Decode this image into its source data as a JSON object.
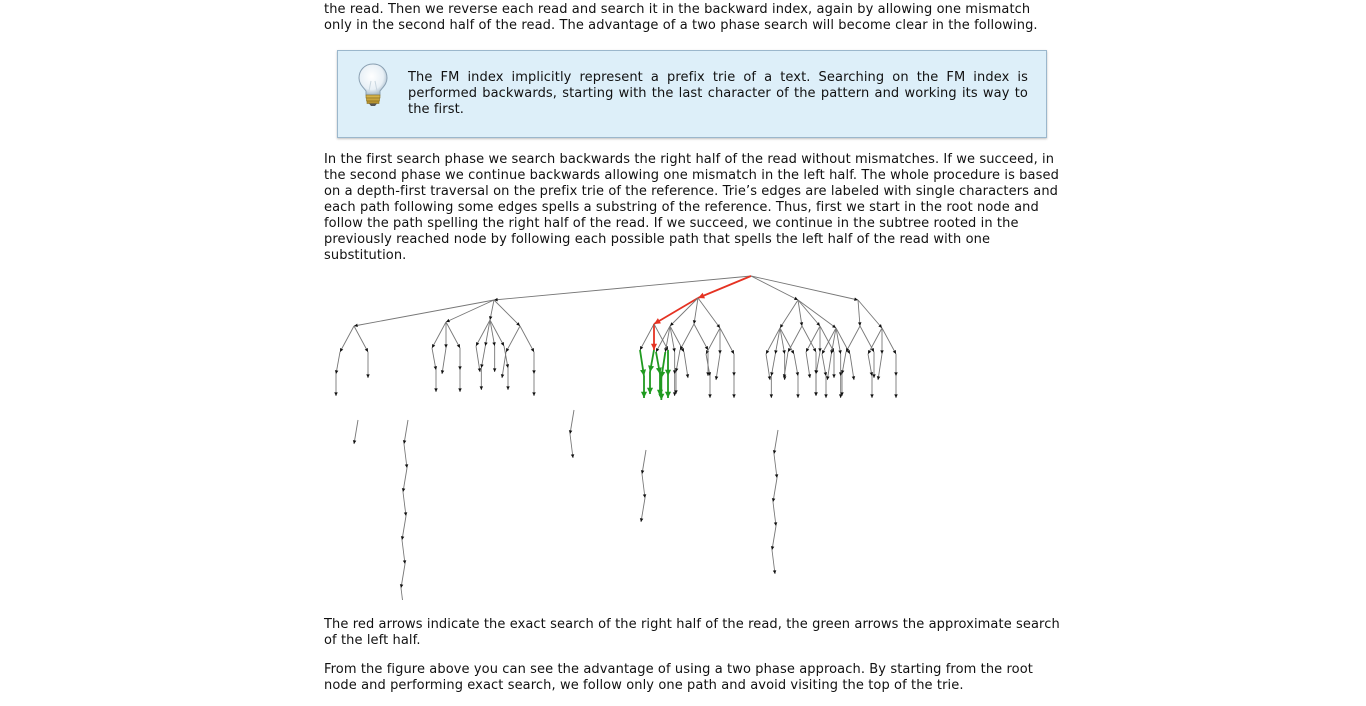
{
  "paragraphs": {
    "intro": "restrictions. We first search each read in the forward index by allowing one mismatch only in the second half of the read. Then we reverse each read and search it in the backward index, again by allowing one mismatch only in the second half of the read. The advantage of a two phase search will become clear in the following.",
    "tip": "The FM index implicitly represent a prefix trie of a text. Searching on the FM index is performed backwards, starting with the last character of the pattern and working its way to the first.",
    "phase": "In the first search phase we search backwards the right half of the read without mismatches. If we succeed, in the second phase we continue backwards allowing one mismatch in the left half. The whole procedure is based on a depth-first traversal on the prefix trie of the reference. Trie’s edges are labeled with single characters and each path following some edges spells a substring of the reference. Thus, first we start in the root node and follow the path spelling the right half of the read. If we succeed, we continue in the subtree rooted in the previously reached node by following each possible path that spells the left half of the read with one substitution.",
    "caption": "The red arrows indicate the exact search of the right half of the read, the green arrows the approximate search of the left half.",
    "advantage": "From the figure above you can see the advantage of using a two phase approach. By starting from the root node and performing exact search, we follow only one path and avoid visiting the top of the trie."
  },
  "icons": {
    "tip": "lightbulb-icon"
  },
  "colors": {
    "tip_bg": "#ddeff9",
    "exact_path": "#e53222",
    "approx_path": "#1f9a1f",
    "edge": "#777777"
  }
}
